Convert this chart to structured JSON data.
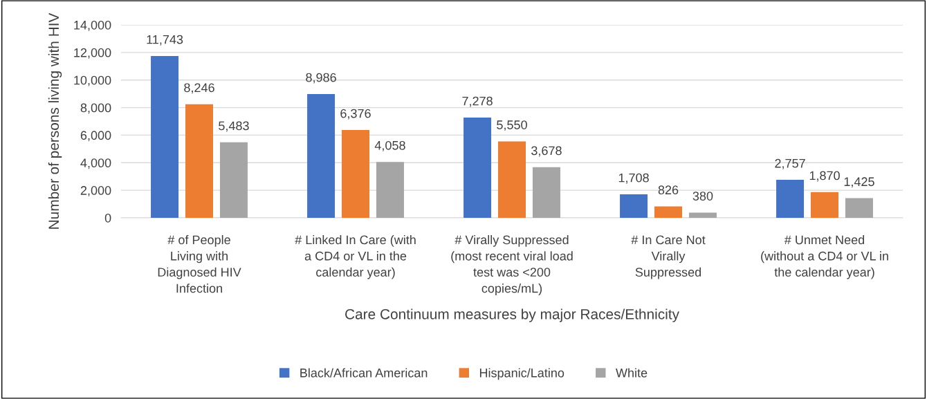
{
  "chart_data": {
    "type": "bar",
    "categories": [
      "# of People\nLiving with\nDiagnosed HIV\nInfection",
      "# Linked In Care (with\na CD4 or VL in the\ncalendar year)",
      "# Virally Suppressed\n(most recent viral load\ntest was <200\ncopies/mL)",
      "# In Care Not\nVirally\nSuppressed",
      "# Unmet Need\n(without a CD4 or VL in\nthe calendar year)"
    ],
    "series": [
      {
        "name": "Black/African American",
        "color": "#4472c4",
        "values": [
          11743,
          8986,
          7278,
          1708,
          2757
        ]
      },
      {
        "name": "Hispanic/Latino",
        "color": "#ed7d31",
        "values": [
          8246,
          6376,
          5550,
          826,
          1870
        ]
      },
      {
        "name": "White",
        "color": "#a5a5a5",
        "values": [
          5483,
          4058,
          3678,
          380,
          1425
        ]
      }
    ],
    "xlabel": "Care Continuum measures by major Races/Ethnicity",
    "ylabel": "Number of persons living with HIV",
    "ylim": [
      0,
      14000
    ],
    "yticks": [
      {
        "value": 0,
        "label": "0"
      },
      {
        "value": 2000,
        "label": "2,000"
      },
      {
        "value": 4000,
        "label": "4,000"
      },
      {
        "value": 6000,
        "label": "6,000"
      },
      {
        "value": 8000,
        "label": "8,000"
      },
      {
        "value": 10000,
        "label": "10,000"
      },
      {
        "value": 12000,
        "label": "12,000"
      },
      {
        "value": 14000,
        "label": "14,000"
      }
    ],
    "value_labels": [
      [
        "11,743",
        "8,986",
        "7,278",
        "1,708",
        "2,757"
      ],
      [
        "8,246",
        "6,376",
        "5,550",
        "826",
        "1,870"
      ],
      [
        "5,483",
        "4,058",
        "3,678",
        "380",
        "1,425"
      ]
    ],
    "grid": "y",
    "legend": "bottom"
  }
}
